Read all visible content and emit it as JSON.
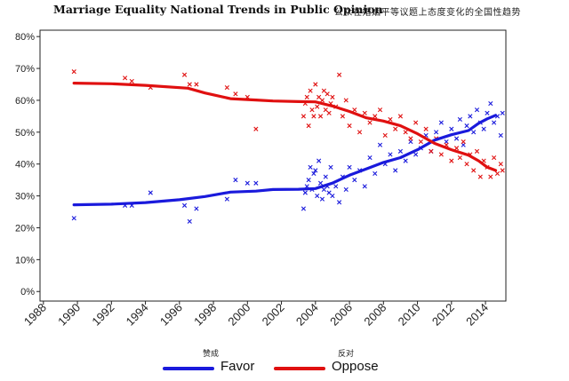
{
  "chart_data": {
    "type": "line",
    "title": "Marriage Equality National Trends in Public Opinion",
    "title_cn": "公众在婚姻平等议题上态度变化的全国性趋势",
    "x_range": [
      1987.8,
      2015.2
    ],
    "y_range": [
      -3,
      82
    ],
    "x_ticks": [
      1988,
      1990,
      1992,
      1994,
      1996,
      1998,
      2000,
      2002,
      2004,
      2006,
      2008,
      2010,
      2012,
      2014
    ],
    "y_ticks": [
      0,
      10,
      20,
      30,
      40,
      50,
      60,
      70,
      80
    ],
    "y_tick_labels": [
      "0%",
      "10%",
      "20%",
      "30%",
      "40%",
      "50%",
      "60%",
      "70%",
      "80%"
    ],
    "series": [
      {
        "name": "Favor",
        "name_cn": "赞成",
        "color": "#1a1adc",
        "trend": [
          [
            1989.8,
            27.2
          ],
          [
            1992,
            27.4
          ],
          [
            1994,
            27.9
          ],
          [
            1996,
            28.8
          ],
          [
            1997.5,
            29.8
          ],
          [
            1999,
            31.2
          ],
          [
            2000.5,
            31.5
          ],
          [
            2001.5,
            32.0
          ],
          [
            2003,
            32.1
          ],
          [
            2004,
            32.3
          ],
          [
            2005,
            34.0
          ],
          [
            2006,
            36.5
          ],
          [
            2007,
            38.5
          ],
          [
            2008,
            40.5
          ],
          [
            2009,
            42.0
          ],
          [
            2010,
            44.5
          ],
          [
            2011,
            47.5
          ],
          [
            2012,
            49.2
          ],
          [
            2013,
            50.5
          ],
          [
            2013.6,
            52.8
          ],
          [
            2014.1,
            54.2
          ],
          [
            2014.6,
            55.3
          ]
        ],
        "points": [
          [
            1989.8,
            23
          ],
          [
            1992.8,
            27
          ],
          [
            1993.2,
            27
          ],
          [
            1994.3,
            31
          ],
          [
            1996.3,
            27
          ],
          [
            1996.6,
            22
          ],
          [
            1997,
            26
          ],
          [
            1998.8,
            29
          ],
          [
            1999.3,
            35
          ],
          [
            2000,
            34
          ],
          [
            2000.5,
            34
          ],
          [
            2003.3,
            26
          ],
          [
            2003.4,
            31
          ],
          [
            2003.5,
            33
          ],
          [
            2003.6,
            35
          ],
          [
            2003.7,
            39
          ],
          [
            2003.8,
            32
          ],
          [
            2003.9,
            37
          ],
          [
            2004.0,
            38
          ],
          [
            2004.1,
            30
          ],
          [
            2004.2,
            41
          ],
          [
            2004.3,
            34
          ],
          [
            2004.4,
            29
          ],
          [
            2004.5,
            32
          ],
          [
            2004.6,
            36
          ],
          [
            2004.7,
            33
          ],
          [
            2004.8,
            31
          ],
          [
            2004.9,
            39
          ],
          [
            2005.0,
            30
          ],
          [
            2005.2,
            33
          ],
          [
            2005.4,
            28
          ],
          [
            2005.6,
            36
          ],
          [
            2005.8,
            32
          ],
          [
            2006.0,
            39
          ],
          [
            2006.3,
            35
          ],
          [
            2006.6,
            38
          ],
          [
            2006.9,
            33
          ],
          [
            2007.2,
            42
          ],
          [
            2007.5,
            37
          ],
          [
            2007.8,
            46
          ],
          [
            2008.1,
            40
          ],
          [
            2008.4,
            43
          ],
          [
            2008.7,
            38
          ],
          [
            2009.0,
            44
          ],
          [
            2009.3,
            41
          ],
          [
            2009.6,
            47
          ],
          [
            2009.9,
            43
          ],
          [
            2010.2,
            45
          ],
          [
            2010.5,
            49
          ],
          [
            2010.8,
            44
          ],
          [
            2011.1,
            50
          ],
          [
            2011.4,
            53
          ],
          [
            2011.7,
            47
          ],
          [
            2012.0,
            51
          ],
          [
            2012.3,
            48
          ],
          [
            2012.5,
            54
          ],
          [
            2012.7,
            46
          ],
          [
            2012.9,
            52
          ],
          [
            2013.1,
            55
          ],
          [
            2013.3,
            50
          ],
          [
            2013.5,
            57
          ],
          [
            2013.7,
            53
          ],
          [
            2013.9,
            51
          ],
          [
            2014.1,
            56
          ],
          [
            2014.3,
            59
          ],
          [
            2014.5,
            53
          ],
          [
            2014.7,
            55
          ],
          [
            2014.9,
            49
          ],
          [
            2015.0,
            56
          ]
        ]
      },
      {
        "name": "Oppose",
        "name_cn": "反对",
        "color": "#e01010",
        "trend": [
          [
            1989.8,
            65.4
          ],
          [
            1992,
            65.2
          ],
          [
            1994,
            64.7
          ],
          [
            1996.5,
            63.8
          ],
          [
            1997.5,
            62.3
          ],
          [
            1999,
            60.5
          ],
          [
            2000.5,
            60.1
          ],
          [
            2001.5,
            59.8
          ],
          [
            2003,
            59.6
          ],
          [
            2004,
            59.5
          ],
          [
            2005,
            58.2
          ],
          [
            2006,
            56.5
          ],
          [
            2007,
            54.5
          ],
          [
            2008,
            53.5
          ],
          [
            2009,
            52.0
          ],
          [
            2010,
            49.5
          ],
          [
            2011,
            46.5
          ],
          [
            2012,
            44.5
          ],
          [
            2013,
            42.8
          ],
          [
            2013.6,
            41.0
          ],
          [
            2014.1,
            39.0
          ],
          [
            2014.6,
            38.0
          ]
        ],
        "points": [
          [
            1989.8,
            69
          ],
          [
            1992.8,
            67
          ],
          [
            1993.2,
            66
          ],
          [
            1994.3,
            64
          ],
          [
            1996.3,
            68
          ],
          [
            1996.6,
            65
          ],
          [
            1997,
            65
          ],
          [
            1998.8,
            64
          ],
          [
            1999.3,
            62
          ],
          [
            2000,
            61
          ],
          [
            2000.5,
            51
          ],
          [
            2003.3,
            55
          ],
          [
            2003.4,
            59
          ],
          [
            2003.5,
            61
          ],
          [
            2003.6,
            52
          ],
          [
            2003.7,
            63
          ],
          [
            2003.8,
            57
          ],
          [
            2003.9,
            55
          ],
          [
            2004.0,
            65
          ],
          [
            2004.1,
            58
          ],
          [
            2004.2,
            61
          ],
          [
            2004.3,
            55
          ],
          [
            2004.4,
            60
          ],
          [
            2004.5,
            63
          ],
          [
            2004.6,
            57
          ],
          [
            2004.7,
            62
          ],
          [
            2004.8,
            56
          ],
          [
            2004.9,
            59
          ],
          [
            2005.0,
            61
          ],
          [
            2005.2,
            58
          ],
          [
            2005.4,
            68
          ],
          [
            2005.6,
            55
          ],
          [
            2005.8,
            60
          ],
          [
            2006.0,
            52
          ],
          [
            2006.3,
            57
          ],
          [
            2006.6,
            50
          ],
          [
            2006.9,
            56
          ],
          [
            2007.2,
            53
          ],
          [
            2007.5,
            55
          ],
          [
            2007.8,
            57
          ],
          [
            2008.1,
            49
          ],
          [
            2008.4,
            54
          ],
          [
            2008.7,
            51
          ],
          [
            2009.0,
            55
          ],
          [
            2009.3,
            50
          ],
          [
            2009.6,
            48
          ],
          [
            2009.9,
            53
          ],
          [
            2010.2,
            47
          ],
          [
            2010.5,
            51
          ],
          [
            2010.8,
            44
          ],
          [
            2011.1,
            48
          ],
          [
            2011.4,
            43
          ],
          [
            2011.7,
            46
          ],
          [
            2012.0,
            41
          ],
          [
            2012.3,
            45
          ],
          [
            2012.5,
            42
          ],
          [
            2012.7,
            47
          ],
          [
            2012.9,
            40
          ],
          [
            2013.1,
            43
          ],
          [
            2013.3,
            38
          ],
          [
            2013.5,
            44
          ],
          [
            2013.7,
            36
          ],
          [
            2013.9,
            41
          ],
          [
            2014.1,
            39
          ],
          [
            2014.3,
            36
          ],
          [
            2014.5,
            42
          ],
          [
            2014.7,
            37
          ],
          [
            2014.9,
            40
          ],
          [
            2015.0,
            38
          ]
        ]
      }
    ]
  }
}
